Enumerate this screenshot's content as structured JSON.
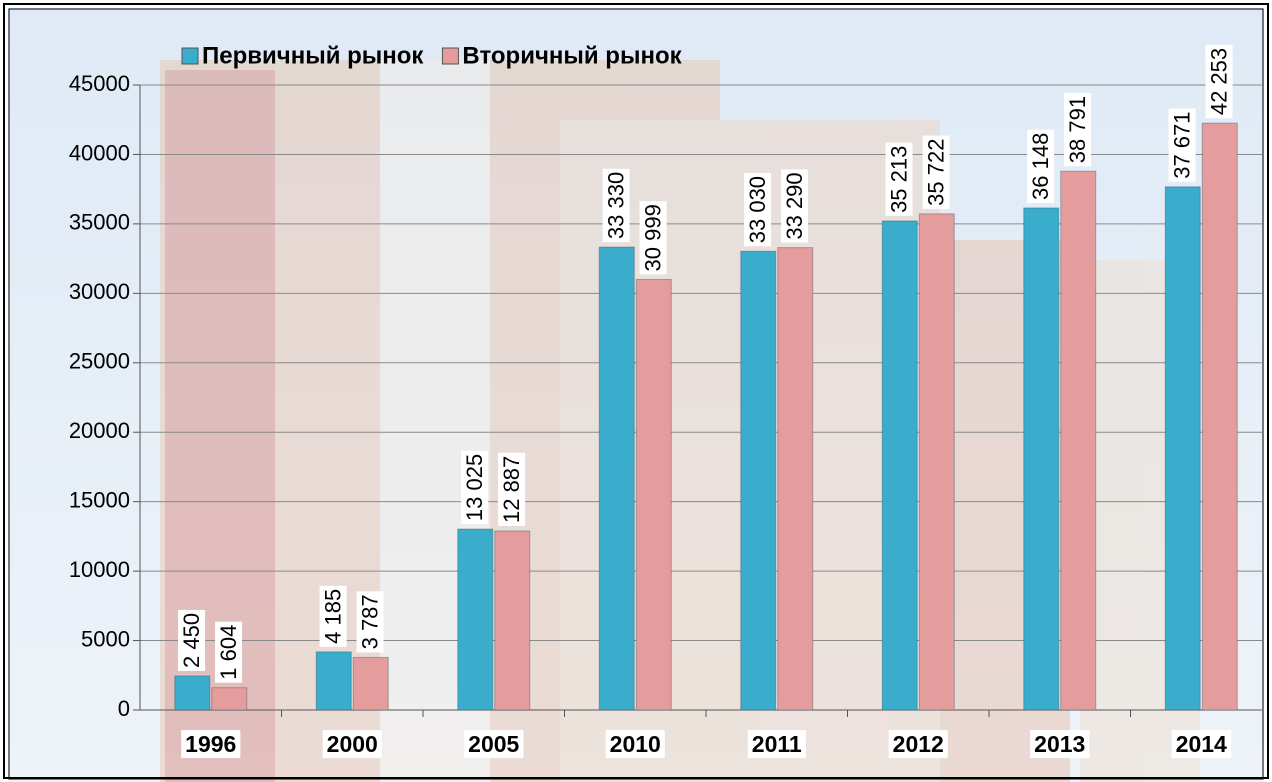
{
  "chart_data": {
    "type": "bar",
    "categories": [
      "1996",
      "2000",
      "2005",
      "2010",
      "2011",
      "2012",
      "2013",
      "2014"
    ],
    "series": [
      {
        "name": "Первичный рынок",
        "color": "#3aaccc",
        "values": [
          2450,
          4185,
          13025,
          33330,
          33030,
          35213,
          36148,
          37671
        ],
        "value_labels": [
          "2 450",
          "4 185",
          "13 025",
          "33 330",
          "33 030",
          "35 213",
          "36 148",
          "37 671"
        ]
      },
      {
        "name": "Вторичный рынок",
        "color": "#e59c9c",
        "values": [
          1604,
          3787,
          12887,
          30999,
          33290,
          35722,
          38791,
          42253
        ],
        "value_labels": [
          "1 604",
          "3 787",
          "12 887",
          "30 999",
          "33 290",
          "35 722",
          "38 791",
          "42 253"
        ]
      }
    ],
    "ylim": [
      0,
      45000
    ],
    "yticks": [
      0,
      5000,
      10000,
      15000,
      20000,
      25000,
      30000,
      35000,
      40000,
      45000
    ],
    "grid": true
  }
}
